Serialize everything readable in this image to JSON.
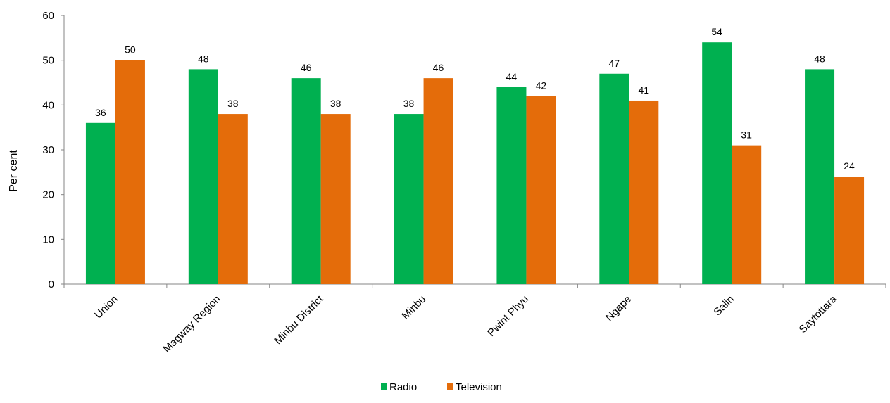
{
  "chart_data": {
    "type": "bar",
    "categories": [
      "Union",
      "Magway Region",
      "Minbu District",
      "Minbu",
      "Pwint Phyu",
      "Ngape",
      "Salin",
      "Saytottara"
    ],
    "series": [
      {
        "name": "Radio",
        "values": [
          36,
          48,
          46,
          38,
          44,
          47,
          54,
          48
        ],
        "labels": [
          "36",
          "48",
          "46",
          "38",
          "44",
          "47",
          "54",
          "48"
        ],
        "color": "#00b050"
      },
      {
        "name": "Television",
        "values": [
          50,
          38,
          38,
          46,
          42,
          41,
          31,
          24
        ],
        "labels": [
          "50",
          "38",
          "38",
          "46",
          "42",
          "41",
          "31",
          "24"
        ],
        "color": "#e46c0a"
      }
    ],
    "ylabel": "Per cent",
    "xlabel": "",
    "ylim": [
      0,
      60
    ],
    "yticks": [
      "0",
      "10",
      "20",
      "30",
      "40",
      "50",
      "60"
    ],
    "grid": false,
    "legend_position": "bottom"
  }
}
